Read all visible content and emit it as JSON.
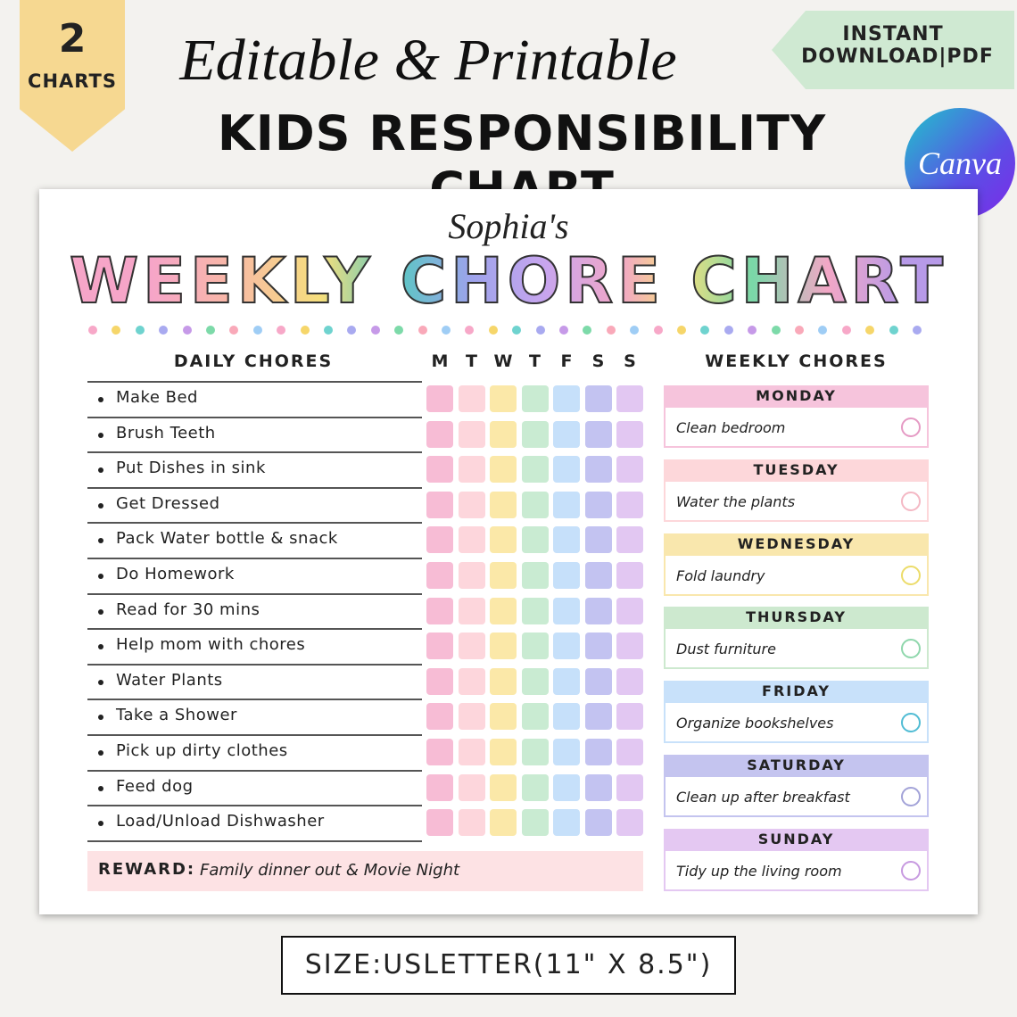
{
  "badge": {
    "number": "2",
    "label": "CHARTS"
  },
  "header": {
    "script_title": "Editable & Printable",
    "title": "KIDS RESPONSIBILITY CHART"
  },
  "download_tag": {
    "line1": "INSTANT",
    "line2": "DOWNLOAD|PDF"
  },
  "canva": "Canva",
  "sheet": {
    "name": "Sophia's",
    "title": "WEEKLY CHORE CHART",
    "daily": {
      "heading": "DAILY CHORES",
      "days": [
        "M",
        "T",
        "W",
        "T",
        "F",
        "S",
        "S"
      ],
      "chores": [
        "Make Bed",
        "Brush Teeth",
        "Put Dishes in sink",
        "Get Dressed",
        "Pack Water bottle & snack",
        "Do Homework",
        "Read for 30 mins",
        "Help mom with chores",
        "Water Plants",
        "Take a Shower",
        "Pick up dirty clothes",
        "Feed dog",
        "Load/Unload Dishwasher"
      ]
    },
    "weekly": {
      "heading": "WEEKLY CHORES",
      "days": [
        {
          "day": "MONDAY",
          "task": "Clean bedroom"
        },
        {
          "day": "TUESDAY",
          "task": "Water the plants"
        },
        {
          "day": "WEDNESDAY",
          "task": "Fold laundry"
        },
        {
          "day": "THURSDAY",
          "task": "Dust furniture"
        },
        {
          "day": "FRIDAY",
          "task": "Organize bookshelves"
        },
        {
          "day": "SATURDAY",
          "task": "Clean up after breakfast"
        },
        {
          "day": "SUNDAY",
          "task": "Tidy up the living room"
        }
      ]
    },
    "reward": {
      "label": "REWARD:",
      "text": "Family dinner out & Movie Night"
    }
  },
  "size": "SIZE:USLETTER(11\" X 8.5\")"
}
